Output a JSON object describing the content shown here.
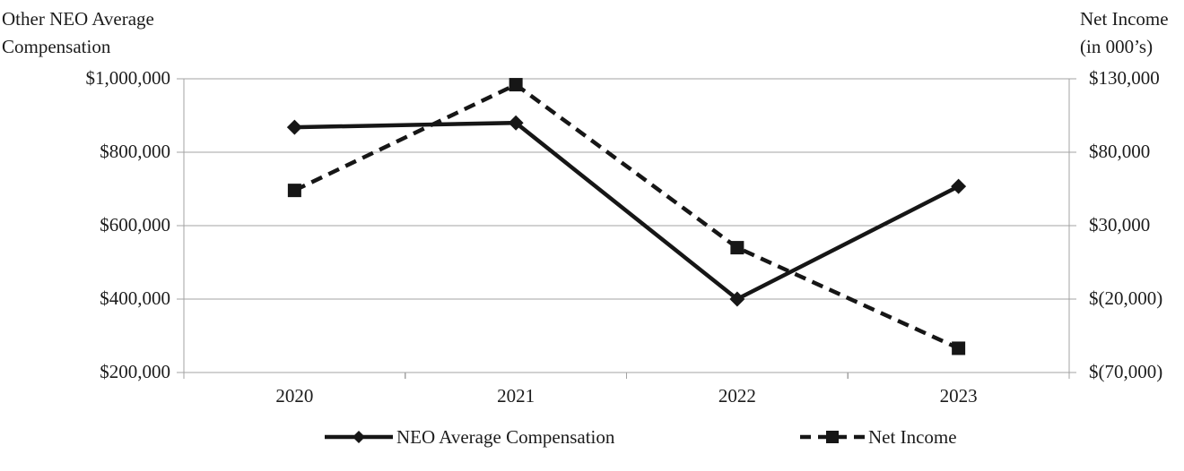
{
  "chart_data": {
    "type": "line",
    "title": "",
    "left_axis": {
      "title_line1": "Other NEO Average",
      "title_line2": "Compensation",
      "min": 200000,
      "max": 1000000,
      "ticks": [
        1000000,
        800000,
        600000,
        400000,
        200000
      ],
      "tick_labels": [
        "$1,000,000",
        "$800,000",
        "$600,000",
        "$400,000",
        "$200,000"
      ]
    },
    "right_axis": {
      "title_line1": "Net Income",
      "title_line2": "(in 000’s)",
      "min": -70000,
      "max": 130000,
      "ticks": [
        130000,
        80000,
        30000,
        -20000,
        -70000
      ],
      "tick_labels": [
        "$130,000",
        "$80,000",
        "$30,000",
        "$(20,000)",
        "$(70,000)"
      ]
    },
    "categories": [
      "2020",
      "2021",
      "2022",
      "2023"
    ],
    "series": [
      {
        "name": "NEO Average Compensation",
        "axis": "left",
        "line_style": "solid",
        "marker": "diamond",
        "values": [
          868000,
          880000,
          400000,
          707000
        ]
      },
      {
        "name": "Net Income",
        "axis": "right",
        "line_style": "dashed",
        "marker": "square",
        "values": [
          54000,
          126000,
          15000,
          -53500
        ]
      }
    ],
    "legend_position": "bottom",
    "grid": true,
    "colors": {
      "series_line": "#161616",
      "axis_and_grid": "#a3a3a3",
      "text": "#1c1c1c",
      "background": "#ffffff"
    }
  }
}
